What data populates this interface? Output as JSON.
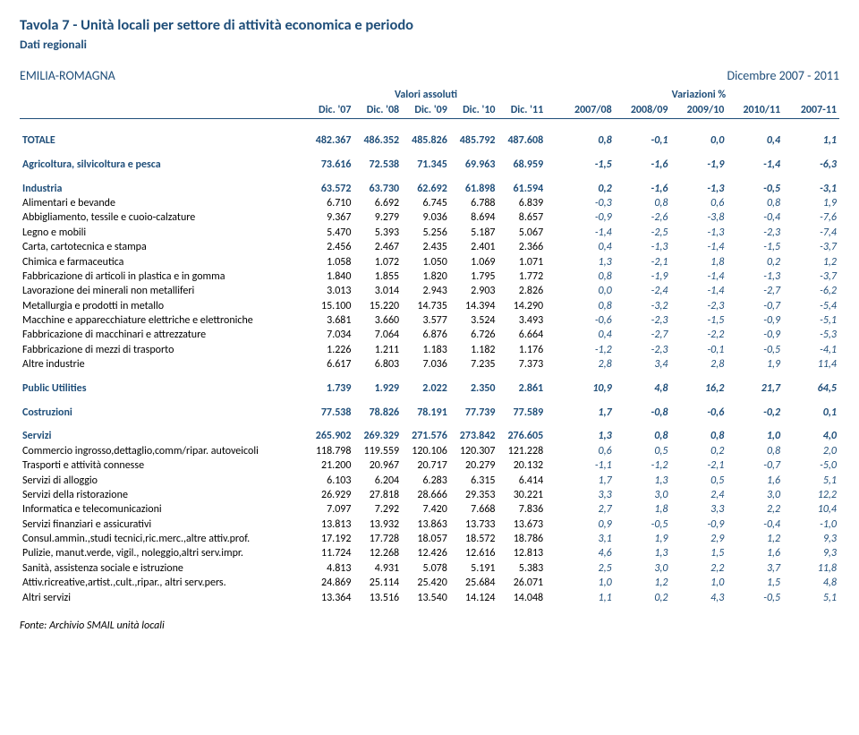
{
  "title": "Tavola 7 - Unità locali per settore di attività economica e periodo",
  "subtitle": "Dati regionali",
  "region": "EMILIA-ROMAGNA",
  "period": "Dicembre 2007 - 2011",
  "group_headers": {
    "abs": "Valori assoluti",
    "var": "Variazioni %"
  },
  "col_headers": {
    "abs": [
      "Dic. '07",
      "Dic. '08",
      "Dic. '09",
      "Dic. '10",
      "Dic. '11"
    ],
    "var": [
      "2007/08",
      "2008/09",
      "2009/10",
      "2010/11",
      "2007-11"
    ]
  },
  "sections": [
    {
      "type": "section",
      "label": "TOTALE",
      "abs": [
        "482.367",
        "486.352",
        "485.826",
        "485.792",
        "487.608"
      ],
      "var": [
        "0,8",
        "-0,1",
        "0,0",
        "0,4",
        "1,1"
      ]
    },
    {
      "type": "spacer"
    },
    {
      "type": "section",
      "label": "Agricoltura, silvicoltura e pesca",
      "abs": [
        "73.616",
        "72.538",
        "71.345",
        "69.963",
        "68.959"
      ],
      "var": [
        "-1,5",
        "-1,6",
        "-1,9",
        "-1,4",
        "-6,3"
      ]
    },
    {
      "type": "spacer"
    },
    {
      "type": "section",
      "label": "Industria",
      "abs": [
        "63.572",
        "63.730",
        "62.692",
        "61.898",
        "61.594"
      ],
      "var": [
        "0,2",
        "-1,6",
        "-1,3",
        "-0,5",
        "-3,1"
      ]
    },
    {
      "type": "row",
      "label": "Alimentari e bevande",
      "abs": [
        "6.710",
        "6.692",
        "6.745",
        "6.788",
        "6.839"
      ],
      "var": [
        "-0,3",
        "0,8",
        "0,6",
        "0,8",
        "1,9"
      ]
    },
    {
      "type": "row",
      "label": "Abbigliamento, tessile e cuoio-calzature",
      "abs": [
        "9.367",
        "9.279",
        "9.036",
        "8.694",
        "8.657"
      ],
      "var": [
        "-0,9",
        "-2,6",
        "-3,8",
        "-0,4",
        "-7,6"
      ]
    },
    {
      "type": "row",
      "label": "Legno e mobili",
      "abs": [
        "5.470",
        "5.393",
        "5.256",
        "5.187",
        "5.067"
      ],
      "var": [
        "-1,4",
        "-2,5",
        "-1,3",
        "-2,3",
        "-7,4"
      ]
    },
    {
      "type": "row",
      "label": "Carta, cartotecnica e stampa",
      "abs": [
        "2.456",
        "2.467",
        "2.435",
        "2.401",
        "2.366"
      ],
      "var": [
        "0,4",
        "-1,3",
        "-1,4",
        "-1,5",
        "-3,7"
      ]
    },
    {
      "type": "row",
      "label": "Chimica e farmaceutica",
      "abs": [
        "1.058",
        "1.072",
        "1.050",
        "1.069",
        "1.071"
      ],
      "var": [
        "1,3",
        "-2,1",
        "1,8",
        "0,2",
        "1,2"
      ]
    },
    {
      "type": "row",
      "label": "Fabbricazione di articoli in plastica e in gomma",
      "abs": [
        "1.840",
        "1.855",
        "1.820",
        "1.795",
        "1.772"
      ],
      "var": [
        "0,8",
        "-1,9",
        "-1,4",
        "-1,3",
        "-3,7"
      ]
    },
    {
      "type": "row",
      "label": "Lavorazione dei minerali non metalliferi",
      "abs": [
        "3.013",
        "3.014",
        "2.943",
        "2.903",
        "2.826"
      ],
      "var": [
        "0,0",
        "-2,4",
        "-1,4",
        "-2,7",
        "-6,2"
      ]
    },
    {
      "type": "row",
      "label": "Metallurgia e prodotti in metallo",
      "abs": [
        "15.100",
        "15.220",
        "14.735",
        "14.394",
        "14.290"
      ],
      "var": [
        "0,8",
        "-3,2",
        "-2,3",
        "-0,7",
        "-5,4"
      ]
    },
    {
      "type": "row",
      "label": "Macchine e apparecchiature elettriche e elettroniche",
      "abs": [
        "3.681",
        "3.660",
        "3.577",
        "3.524",
        "3.493"
      ],
      "var": [
        "-0,6",
        "-2,3",
        "-1,5",
        "-0,9",
        "-5,1"
      ]
    },
    {
      "type": "row",
      "label": "Fabbricazione di macchinari e attrezzature",
      "abs": [
        "7.034",
        "7.064",
        "6.876",
        "6.726",
        "6.664"
      ],
      "var": [
        "0,4",
        "-2,7",
        "-2,2",
        "-0,9",
        "-5,3"
      ]
    },
    {
      "type": "row",
      "label": "Fabbricazione di mezzi di trasporto",
      "abs": [
        "1.226",
        "1.211",
        "1.183",
        "1.182",
        "1.176"
      ],
      "var": [
        "-1,2",
        "-2,3",
        "-0,1",
        "-0,5",
        "-4,1"
      ]
    },
    {
      "type": "row",
      "label": "Altre industrie",
      "abs": [
        "6.617",
        "6.803",
        "7.036",
        "7.235",
        "7.373"
      ],
      "var": [
        "2,8",
        "3,4",
        "2,8",
        "1,9",
        "11,4"
      ]
    },
    {
      "type": "spacer"
    },
    {
      "type": "section",
      "label": "Public Utilities",
      "abs": [
        "1.739",
        "1.929",
        "2.022",
        "2.350",
        "2.861"
      ],
      "var": [
        "10,9",
        "4,8",
        "16,2",
        "21,7",
        "64,5"
      ]
    },
    {
      "type": "spacer"
    },
    {
      "type": "section",
      "label": "Costruzioni",
      "abs": [
        "77.538",
        "78.826",
        "78.191",
        "77.739",
        "77.589"
      ],
      "var": [
        "1,7",
        "-0,8",
        "-0,6",
        "-0,2",
        "0,1"
      ]
    },
    {
      "type": "spacer"
    },
    {
      "type": "section",
      "label": "Servizi",
      "abs": [
        "265.902",
        "269.329",
        "271.576",
        "273.842",
        "276.605"
      ],
      "var": [
        "1,3",
        "0,8",
        "0,8",
        "1,0",
        "4,0"
      ]
    },
    {
      "type": "row",
      "label": "Commercio ingrosso,dettaglio,comm/ripar. autoveicoli",
      "abs": [
        "118.798",
        "119.559",
        "120.106",
        "120.307",
        "121.228"
      ],
      "var": [
        "0,6",
        "0,5",
        "0,2",
        "0,8",
        "2,0"
      ]
    },
    {
      "type": "row",
      "label": "Trasporti e attività connesse",
      "abs": [
        "21.200",
        "20.967",
        "20.717",
        "20.279",
        "20.132"
      ],
      "var": [
        "-1,1",
        "-1,2",
        "-2,1",
        "-0,7",
        "-5,0"
      ]
    },
    {
      "type": "row",
      "label": "Servizi di alloggio",
      "abs": [
        "6.103",
        "6.204",
        "6.283",
        "6.315",
        "6.414"
      ],
      "var": [
        "1,7",
        "1,3",
        "0,5",
        "1,6",
        "5,1"
      ]
    },
    {
      "type": "row",
      "label": "Servizi della ristorazione",
      "abs": [
        "26.929",
        "27.818",
        "28.666",
        "29.353",
        "30.221"
      ],
      "var": [
        "3,3",
        "3,0",
        "2,4",
        "3,0",
        "12,2"
      ]
    },
    {
      "type": "row",
      "label": "Informatica e telecomunicazioni",
      "abs": [
        "7.097",
        "7.292",
        "7.420",
        "7.668",
        "7.836"
      ],
      "var": [
        "2,7",
        "1,8",
        "3,3",
        "2,2",
        "10,4"
      ]
    },
    {
      "type": "row",
      "label": "Servizi finanziari e assicurativi",
      "abs": [
        "13.813",
        "13.932",
        "13.863",
        "13.733",
        "13.673"
      ],
      "var": [
        "0,9",
        "-0,5",
        "-0,9",
        "-0,4",
        "-1,0"
      ]
    },
    {
      "type": "row",
      "label": "Consul.ammin.,studi tecnici,ric.merc.,altre attiv.prof.",
      "abs": [
        "17.192",
        "17.728",
        "18.057",
        "18.572",
        "18.786"
      ],
      "var": [
        "3,1",
        "1,9",
        "2,9",
        "1,2",
        "9,3"
      ]
    },
    {
      "type": "row",
      "label": "Pulizie, manut.verde, vigil., noleggio,altri serv.impr.",
      "abs": [
        "11.724",
        "12.268",
        "12.426",
        "12.616",
        "12.813"
      ],
      "var": [
        "4,6",
        "1,3",
        "1,5",
        "1,6",
        "9,3"
      ]
    },
    {
      "type": "row",
      "label": "Sanità, assistenza sociale e istruzione",
      "abs": [
        "4.813",
        "4.931",
        "5.078",
        "5.191",
        "5.383"
      ],
      "var": [
        "2,5",
        "3,0",
        "2,2",
        "3,7",
        "11,8"
      ]
    },
    {
      "type": "row",
      "label": "Attiv.ricreative,artist.,cult.,ripar., altri serv.pers.",
      "abs": [
        "24.869",
        "25.114",
        "25.420",
        "25.684",
        "26.071"
      ],
      "var": [
        "1,0",
        "1,2",
        "1,0",
        "1,5",
        "4,8"
      ]
    },
    {
      "type": "row",
      "label": "Altri servizi",
      "abs": [
        "13.364",
        "13.516",
        "13.540",
        "14.124",
        "14.048"
      ],
      "var": [
        "1,1",
        "0,2",
        "4,3",
        "-0,5",
        "5,1"
      ]
    }
  ],
  "footnote": "Fonte: Archivio SMAIL unità locali"
}
